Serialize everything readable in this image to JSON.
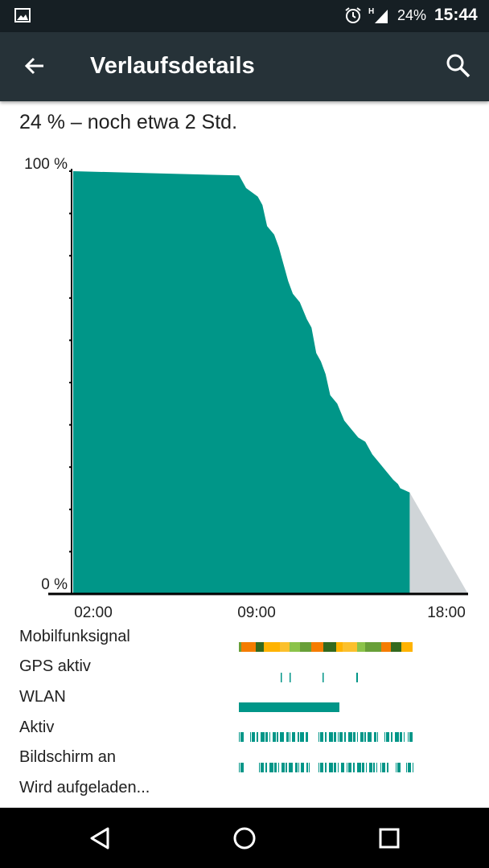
{
  "status_bar": {
    "network_type": "H",
    "battery": "24%",
    "time": "15:44"
  },
  "app_bar": {
    "title": "Verlaufsdetails"
  },
  "summary": "24 % – noch etwa 2 Std.",
  "chart_data": {
    "type": "area",
    "title": "",
    "xlabel": "",
    "ylabel": "",
    "x_ticks": [
      "02:00",
      "09:00",
      "18:00"
    ],
    "y_ticks": [
      "100 %",
      "0 %"
    ],
    "ylim": [
      0,
      100
    ],
    "xlim_hours": [
      1.0,
      17.9
    ],
    "colors": {
      "actual": "#009688",
      "predicted": "#d0d5d8"
    },
    "series": [
      {
        "x": [
          1.0,
          8.1,
          8.4,
          8.9,
          9.1,
          9.3,
          9.6,
          9.8,
          10.0,
          10.2,
          10.4,
          10.7,
          11.0,
          11.2,
          11.4,
          11.6,
          11.8,
          12.0,
          12.3,
          12.6,
          12.9,
          13.2,
          13.5,
          13.8,
          14.1,
          14.4,
          14.7,
          14.9,
          15.0,
          15.2,
          15.4
        ],
        "y": [
          100,
          99,
          96,
          94,
          92,
          87,
          85,
          82,
          78,
          74,
          71,
          69,
          65,
          63,
          57,
          55,
          52,
          47,
          45,
          41,
          39,
          37,
          36,
          33,
          31,
          29,
          27,
          26,
          25,
          24.5,
          24
        ]
      },
      {
        "x": [
          15.4,
          17.9
        ],
        "y": [
          24,
          0
        ]
      }
    ]
  },
  "activity_rows": [
    {
      "label": "Mobilfunksignal"
    },
    {
      "label": "GPS aktiv"
    },
    {
      "label": "WLAN"
    },
    {
      "label": "Aktiv"
    },
    {
      "label": "Bildschirm an"
    },
    {
      "label": "Wird aufgeladen..."
    }
  ],
  "icons": {
    "status": [
      "gallery-icon",
      "alarm-icon",
      "signal-icon"
    ],
    "app_bar": [
      "back-arrow-icon",
      "search-icon"
    ],
    "navigation": [
      "back-triangle-icon",
      "home-circle-icon",
      "recents-square-icon"
    ]
  }
}
